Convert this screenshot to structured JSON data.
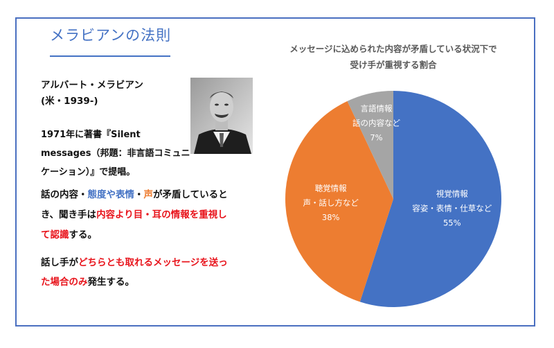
{
  "title": "メラビアンの法則",
  "person": {
    "name": "アルバート・メラビアン",
    "origin": "(米・1939-)",
    "description": "1971年に著書『Silent messages（邦題：非言語コミュニケーション）』で提唱。"
  },
  "paragraph1": {
    "t1": "話の内容・",
    "t2": "態度や表情",
    "t3": "・",
    "t4": "声",
    "t5": "が矛盾しているとき、聞き手は",
    "t6": "内容より目・耳の情報を重視して認識",
    "t7": "する。"
  },
  "paragraph2": {
    "t1": "話し手が",
    "t2": "どちらとも取れるメッセージを送った場合のみ",
    "t3": "発生する。"
  },
  "colors": {
    "accent": "#4472c4",
    "visual": "#4472c4",
    "auditory": "#ed7d31",
    "verbal": "#a5a5a5",
    "highlight_red": "#e8141c"
  },
  "chart_data": {
    "type": "pie",
    "title": "メッセージに込められた内容が矛盾している状況下で受け手が重視する割合",
    "title_line1": "メッセージに込められた内容が矛盾している状況下で",
    "title_line2": "受け手が重視する割合",
    "slices": [
      {
        "label": "視覚情報",
        "sublabel": "容姿・表情・仕草など",
        "value": 55,
        "display": "55%",
        "color": "#4472c4"
      },
      {
        "label": "聴覚情報",
        "sublabel": "声・話し方など",
        "value": 38,
        "display": "38%",
        "color": "#ed7d31"
      },
      {
        "label": "言語情報",
        "sublabel": "話の内容など",
        "value": 7,
        "display": "7%",
        "color": "#a5a5a5"
      }
    ]
  }
}
